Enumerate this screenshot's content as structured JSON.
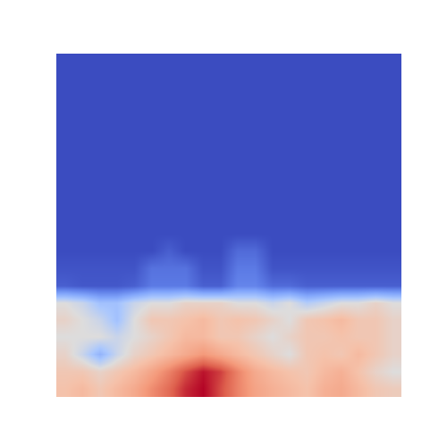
{
  "chart_data": {
    "type": "heatmap",
    "tick_labels": false,
    "cells": [
      [
        0,
        0,
        0,
        0,
        0,
        0,
        0,
        0,
        0,
        0,
        0,
        0,
        0,
        0,
        0,
        0,
        0,
        0,
        0,
        0
      ],
      [
        0,
        0,
        0,
        0,
        0,
        0,
        0,
        0,
        0,
        0,
        0,
        0,
        0,
        0,
        0,
        0,
        0,
        0,
        0,
        0
      ],
      [
        0,
        0,
        0,
        0,
        0,
        0,
        0,
        0,
        0,
        0,
        0,
        0,
        0,
        0,
        0,
        0,
        0,
        0,
        0,
        0
      ],
      [
        0,
        0,
        0,
        0,
        0,
        0,
        0,
        0,
        0,
        0,
        0,
        0,
        0,
        0,
        0,
        0,
        0,
        0,
        0,
        0
      ],
      [
        0,
        0,
        0,
        0,
        0,
        0,
        0,
        0,
        0,
        0,
        0,
        0,
        0,
        0,
        0,
        0,
        0,
        0,
        0,
        0
      ],
      [
        0,
        0,
        0,
        0,
        0,
        0,
        0,
        0,
        0,
        0,
        0,
        0,
        0,
        0,
        0,
        0,
        0,
        0,
        0,
        0
      ],
      [
        0,
        0,
        0,
        0,
        0,
        0,
        0,
        0,
        0,
        0,
        0,
        0,
        0,
        0,
        0,
        0,
        0,
        0,
        0,
        0
      ],
      [
        0,
        0,
        0,
        0,
        0,
        0,
        0,
        0,
        0,
        0,
        0,
        0,
        0,
        0,
        0,
        0,
        0,
        0,
        0,
        0
      ],
      [
        0,
        0,
        0,
        0,
        0,
        0,
        0,
        0,
        0,
        0,
        0,
        0,
        0,
        0,
        0,
        0,
        0,
        0,
        0,
        0
      ],
      [
        0,
        0,
        0,
        0,
        0,
        0,
        0,
        0,
        0,
        0,
        0,
        0,
        0,
        0,
        0,
        0,
        0,
        0,
        0,
        0
      ],
      [
        0,
        0,
        0,
        0,
        0,
        0,
        0,
        0,
        0,
        0,
        0,
        0,
        0,
        0,
        0,
        0,
        0,
        0,
        0,
        0
      ],
      [
        0,
        0,
        0,
        0,
        0,
        0,
        0.05,
        0,
        0,
        0,
        0.08,
        0.08,
        0,
        0,
        0,
        0,
        0,
        0,
        0,
        0
      ],
      [
        0.02,
        0.02,
        0.02,
        0.02,
        0.02,
        0.1,
        0.1,
        0.1,
        0.02,
        0.02,
        0.12,
        0.12,
        0.02,
        0.02,
        0.02,
        0.02,
        0.02,
        0.02,
        0.02,
        0.02
      ],
      [
        0.05,
        0.03,
        0.03,
        0.03,
        0.05,
        0.12,
        0.12,
        0.12,
        0.05,
        0.05,
        0.15,
        0.15,
        0.08,
        0.08,
        0.05,
        0.05,
        0.05,
        0.05,
        0.05,
        0.05
      ],
      [
        0.5,
        0.45,
        0.35,
        0.35,
        0.45,
        0.5,
        0.5,
        0.55,
        0.55,
        0.55,
        0.5,
        0.5,
        0.45,
        0.5,
        0.4,
        0.45,
        0.5,
        0.5,
        0.55,
        0.5
      ],
      [
        0.55,
        0.5,
        0.45,
        0.35,
        0.5,
        0.6,
        0.6,
        0.62,
        0.65,
        0.6,
        0.62,
        0.6,
        0.55,
        0.5,
        0.6,
        0.62,
        0.65,
        0.6,
        0.6,
        0.55
      ],
      [
        0.5,
        0.5,
        0.5,
        0.45,
        0.5,
        0.55,
        0.6,
        0.65,
        0.65,
        0.6,
        0.6,
        0.55,
        0.5,
        0.55,
        0.6,
        0.6,
        0.62,
        0.6,
        0.6,
        0.55
      ],
      [
        0.55,
        0.45,
        0.3,
        0.45,
        0.55,
        0.6,
        0.65,
        0.7,
        0.75,
        0.7,
        0.65,
        0.6,
        0.55,
        0.5,
        0.6,
        0.62,
        0.6,
        0.65,
        0.6,
        0.55
      ],
      [
        0.6,
        0.6,
        0.55,
        0.6,
        0.65,
        0.72,
        0.8,
        0.9,
        0.98,
        0.92,
        0.8,
        0.7,
        0.65,
        0.62,
        0.6,
        0.65,
        0.68,
        0.62,
        0.55,
        0.5
      ],
      [
        0.62,
        0.65,
        0.6,
        0.65,
        0.7,
        0.78,
        0.85,
        0.95,
        1.0,
        0.9,
        0.8,
        0.72,
        0.68,
        0.65,
        0.62,
        0.68,
        0.7,
        0.65,
        0.6,
        0.58
      ]
    ]
  }
}
